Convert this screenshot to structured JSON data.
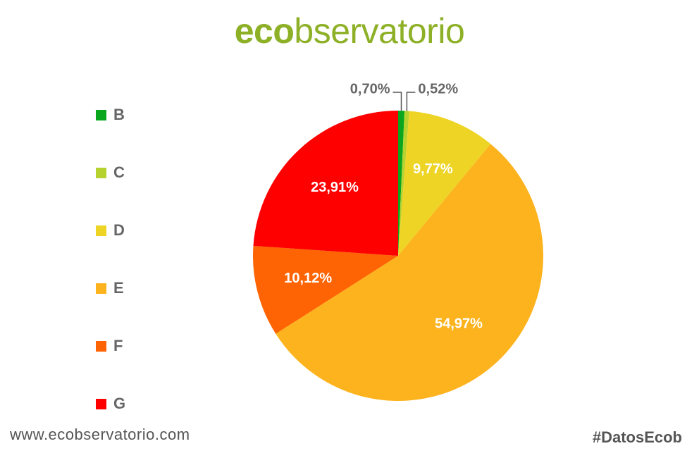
{
  "logo": {
    "bold": "eco",
    "light": "bservatorio",
    "color": "#8db027"
  },
  "chart_data": {
    "type": "pie",
    "title": "",
    "categories": [
      "B",
      "C",
      "D",
      "E",
      "F",
      "G"
    ],
    "values": [
      0.7,
      0.52,
      9.77,
      54.97,
      10.12,
      23.91
    ],
    "labels": [
      "0,70%",
      "0,52%",
      "9,77%",
      "54,97%",
      "10,12%",
      "23,91%"
    ],
    "colors": [
      "#0aa61e",
      "#b5d22f",
      "#eed425",
      "#fcb31e",
      "#fe6403",
      "#fe0000"
    ],
    "legend_position": "left"
  },
  "footer": {
    "url": "www.ecobservatorio.com",
    "hashtag": "#DatosEcob"
  }
}
